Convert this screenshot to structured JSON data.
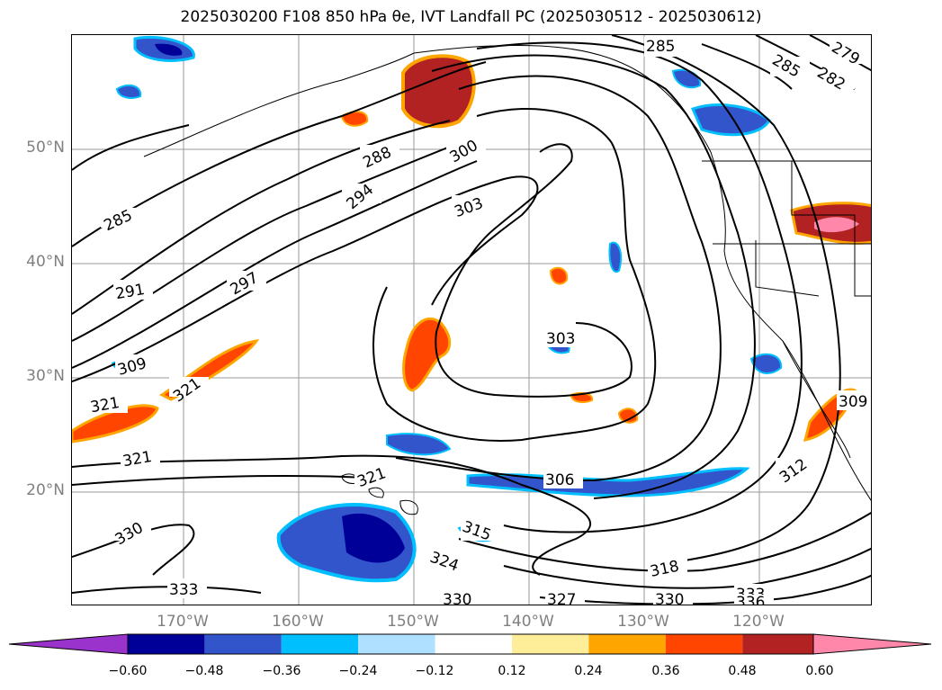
{
  "title": "2025030200 F108 850 hPa θe, IVT Landfall PC (2025030512 - 2025030612)",
  "map": {
    "lon_range": [
      -180,
      -110
    ],
    "lat_range": [
      10,
      60
    ],
    "lat_labels": [
      {
        "lat": 50,
        "text": "50°N"
      },
      {
        "lat": 40,
        "text": "40°N"
      },
      {
        "lat": 30,
        "text": "30°N"
      },
      {
        "lat": 20,
        "text": "20°N"
      }
    ],
    "lon_labels": [
      {
        "lon": -170,
        "text": "170°W"
      },
      {
        "lon": -160,
        "text": "160°W"
      },
      {
        "lon": -150,
        "text": "150°W"
      },
      {
        "lon": -140,
        "text": "140°W"
      },
      {
        "lon": -130,
        "text": "130°W"
      },
      {
        "lon": -120,
        "text": "120°W"
      }
    ],
    "contour_labels": [
      "285",
      "288",
      "291",
      "294",
      "297",
      "300",
      "303",
      "303",
      "306",
      "309",
      "312",
      "315",
      "318",
      "321",
      "321",
      "321",
      "321",
      "324",
      "327",
      "330",
      "330",
      "330",
      "333",
      "333",
      "336",
      "279",
      "282",
      "285",
      "285",
      "309"
    ]
  },
  "colorbar": {
    "colors": [
      "#9933cc",
      "#000099",
      "#3355cc",
      "#00bfff",
      "#b0e0ff",
      "#ffffff",
      "#ffee99",
      "#ffa500",
      "#ff4500",
      "#b22222",
      "#ff88aa"
    ],
    "ticks": [
      "−0.60",
      "−0.48",
      "−0.36",
      "−0.24",
      "−0.12",
      "0.12",
      "0.24",
      "0.36",
      "0.48",
      "0.60"
    ],
    "extend": "both"
  }
}
